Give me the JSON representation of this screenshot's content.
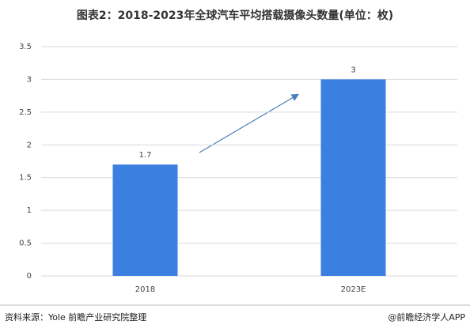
{
  "chart_data": {
    "type": "bar",
    "title": "图表2：2018-2023年全球汽车平均搭载摄像头数量(单位：枚)",
    "categories": [
      "2018",
      "2023E"
    ],
    "values": [
      1.7,
      3
    ],
    "color": "#3b7fe0",
    "ylim": [
      0,
      3.5
    ],
    "yticks": [
      0,
      0.5,
      1,
      1.5,
      2,
      2.5,
      3,
      3.5
    ],
    "grid": true,
    "source": "资料来源：Yole 前瞻产业研究院整理",
    "credit": "@前瞻经济学人APP"
  }
}
